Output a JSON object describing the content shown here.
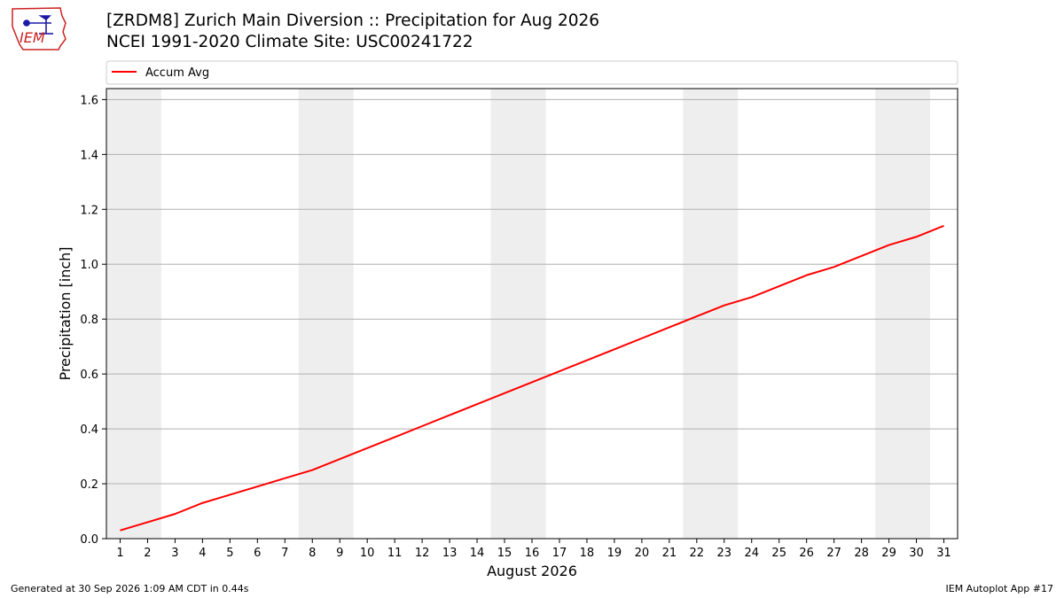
{
  "page": {
    "title": "[ZRDM8] Zurich Main Diversion :: Precipitation for Aug 2026",
    "subtitle": "NCEI 1991-2020 Climate Site: USC00241722",
    "logo_text": "IEM",
    "footer_left": "Generated at 30 Sep 2026 1:09 AM CDT in 0.44s",
    "footer_right": "IEM Autoplot App #17"
  },
  "colors": {
    "line": "#ff0000",
    "weekend_band": "#eeeeee",
    "grid": "#b0b0b0",
    "logo_red": "#cc2222",
    "logo_blue": "#1a1aa6"
  },
  "chart_data": {
    "type": "line",
    "title": "[ZRDM8] Zurich Main Diversion :: Precipitation for Aug 2026",
    "subtitle": "NCEI 1991-2020 Climate Site: USC00241722",
    "xlabel": "August 2026",
    "ylabel": "Precipitation [inch]",
    "x": [
      1,
      2,
      3,
      4,
      5,
      6,
      7,
      8,
      9,
      10,
      11,
      12,
      13,
      14,
      15,
      16,
      17,
      18,
      19,
      20,
      21,
      22,
      23,
      24,
      25,
      26,
      27,
      28,
      29,
      30,
      31
    ],
    "xlim": [
      0.5,
      31.5
    ],
    "ylim": [
      0,
      1.64
    ],
    "yticks": [
      0.0,
      0.2,
      0.4,
      0.6,
      0.8,
      1.0,
      1.2,
      1.4,
      1.6
    ],
    "ytick_labels": [
      "0.0",
      "0.2",
      "0.4",
      "0.6",
      "0.8",
      "1.0",
      "1.2",
      "1.4",
      "1.6"
    ],
    "grid": "horizontal",
    "legend_position": "top, above plot",
    "shaded_weekends": [
      [
        1,
        2
      ],
      [
        8,
        9
      ],
      [
        15,
        16
      ],
      [
        22,
        23
      ],
      [
        29,
        30
      ]
    ],
    "series": [
      {
        "name": "Accum Avg",
        "values": [
          0.03,
          0.06,
          0.09,
          0.13,
          0.16,
          0.19,
          0.22,
          0.25,
          0.29,
          0.33,
          0.37,
          0.41,
          0.45,
          0.49,
          0.53,
          0.57,
          0.61,
          0.65,
          0.69,
          0.73,
          0.77,
          0.81,
          0.85,
          0.88,
          0.92,
          0.96,
          0.99,
          1.03,
          1.07,
          1.1,
          1.14
        ]
      }
    ]
  }
}
